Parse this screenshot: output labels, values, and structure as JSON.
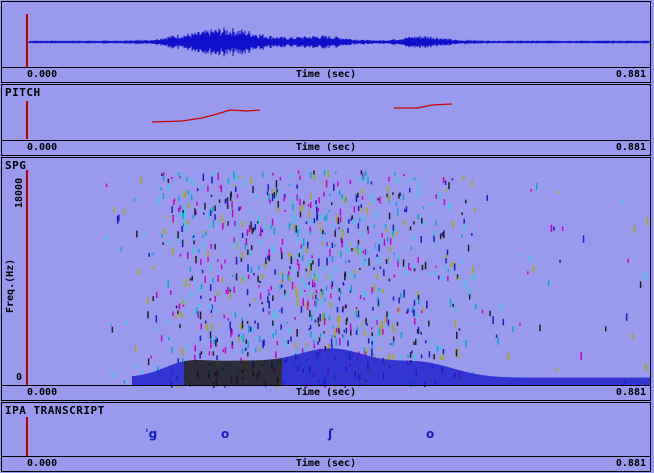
{
  "time_axis": {
    "start": "0.000",
    "label": "Time (sec)",
    "end": "0.881"
  },
  "pitch": {
    "title": "PITCH"
  },
  "spectrogram": {
    "title": "SPG",
    "y_axis_label": "Freq.(Hz)",
    "y_max": "18000",
    "y_min": "0"
  },
  "transcript": {
    "title": "IPA TRANSCRIPT",
    "symbols": [
      "ˈg",
      "o",
      "ʃ",
      "o"
    ]
  },
  "colors": {
    "background": "#9999ee",
    "waveform": "#1010cc",
    "pitch_line": "#cc0000",
    "cursor": "#c00000"
  }
}
